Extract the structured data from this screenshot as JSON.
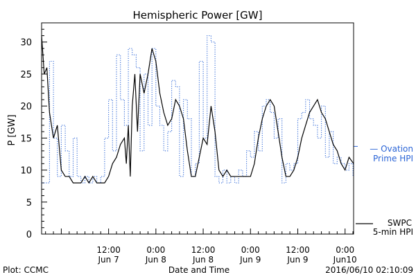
{
  "chart_data": {
    "type": "line",
    "title": "Hemispheric Power [GW]",
    "ylabel": "P [GW]",
    "xlabel": "Date and Time",
    "ylim": [
      0,
      33
    ],
    "yticks": [
      0,
      5,
      10,
      15,
      20,
      25,
      30
    ],
    "grid": false,
    "x_start": "2016-06-06 19:00",
    "x_end": "2016-06-10 02:10",
    "xticks": [
      {
        "t": "2016-06-07 12:00",
        "time": "12:00",
        "date": "Jun 7"
      },
      {
        "t": "2016-06-08 00:00",
        "time": "0:00",
        "date": "Jun 8"
      },
      {
        "t": "2016-06-08 12:00",
        "time": "12:00",
        "date": "Jun 8"
      },
      {
        "t": "2016-06-09 00:00",
        "time": "0:00",
        "date": "Jun 9"
      },
      {
        "t": "2016-06-09 12:00",
        "time": "12:00",
        "date": "Jun 9"
      },
      {
        "t": "2016-06-10 00:00",
        "time": "0:00",
        "date": "Jun10"
      }
    ],
    "series": [
      {
        "name": "Ovation Prime HPI",
        "label_lines": [
          "— Ovation",
          "Prime HPI"
        ],
        "color": "#2a64d6",
        "style": "dotted-step",
        "points": [
          [
            "2016-06-06 19:00",
            8
          ],
          [
            "2016-06-06 20:00",
            8
          ],
          [
            "2016-06-06 21:00",
            27
          ],
          [
            "2016-06-06 22:00",
            15
          ],
          [
            "2016-06-06 23:00",
            9
          ],
          [
            "2016-06-07 00:00",
            17
          ],
          [
            "2016-06-07 01:00",
            13
          ],
          [
            "2016-06-07 02:00",
            9
          ],
          [
            "2016-06-07 03:00",
            15
          ],
          [
            "2016-06-07 04:00",
            9
          ],
          [
            "2016-06-07 05:00",
            8
          ],
          [
            "2016-06-07 06:00",
            9
          ],
          [
            "2016-06-07 07:00",
            8
          ],
          [
            "2016-06-07 08:00",
            9
          ],
          [
            "2016-06-07 09:00",
            8
          ],
          [
            "2016-06-07 10:00",
            9
          ],
          [
            "2016-06-07 11:00",
            15
          ],
          [
            "2016-06-07 12:00",
            21
          ],
          [
            "2016-06-07 13:00",
            13
          ],
          [
            "2016-06-07 14:00",
            28
          ],
          [
            "2016-06-07 15:00",
            21
          ],
          [
            "2016-06-07 16:00",
            17
          ],
          [
            "2016-06-07 17:00",
            29
          ],
          [
            "2016-06-07 18:00",
            28
          ],
          [
            "2016-06-07 19:00",
            26
          ],
          [
            "2016-06-07 20:00",
            13
          ],
          [
            "2016-06-07 21:00",
            25
          ],
          [
            "2016-06-07 22:00",
            17
          ],
          [
            "2016-06-07 23:00",
            29
          ],
          [
            "2016-06-08 00:00",
            20
          ],
          [
            "2016-06-08 01:00",
            17
          ],
          [
            "2016-06-08 02:00",
            13
          ],
          [
            "2016-06-08 03:00",
            16
          ],
          [
            "2016-06-08 04:00",
            24
          ],
          [
            "2016-06-08 05:00",
            23
          ],
          [
            "2016-06-08 06:00",
            9
          ],
          [
            "2016-06-08 07:00",
            21
          ],
          [
            "2016-06-08 08:00",
            18
          ],
          [
            "2016-06-08 09:00",
            9
          ],
          [
            "2016-06-08 10:00",
            11
          ],
          [
            "2016-06-08 11:00",
            27
          ],
          [
            "2016-06-08 12:00",
            15
          ],
          [
            "2016-06-08 13:00",
            31
          ],
          [
            "2016-06-08 14:00",
            30
          ],
          [
            "2016-06-08 15:00",
            9
          ],
          [
            "2016-06-08 16:00",
            8
          ],
          [
            "2016-06-08 17:00",
            10
          ],
          [
            "2016-06-08 18:00",
            8
          ],
          [
            "2016-06-08 19:00",
            9
          ],
          [
            "2016-06-08 20:00",
            8
          ],
          [
            "2016-06-08 21:00",
            10
          ],
          [
            "2016-06-08 22:00",
            9
          ],
          [
            "2016-06-08 23:00",
            13
          ],
          [
            "2016-06-09 00:00",
            12
          ],
          [
            "2016-06-09 01:00",
            16
          ],
          [
            "2016-06-09 02:00",
            13
          ],
          [
            "2016-06-09 03:00",
            20
          ],
          [
            "2016-06-09 04:00",
            21
          ],
          [
            "2016-06-09 05:00",
            19
          ],
          [
            "2016-06-09 06:00",
            15
          ],
          [
            "2016-06-09 07:00",
            18
          ],
          [
            "2016-06-09 08:00",
            8
          ],
          [
            "2016-06-09 09:00",
            11
          ],
          [
            "2016-06-09 10:00",
            10
          ],
          [
            "2016-06-09 11:00",
            11
          ],
          [
            "2016-06-09 12:00",
            18
          ],
          [
            "2016-06-09 13:00",
            19
          ],
          [
            "2016-06-09 14:00",
            21
          ],
          [
            "2016-06-09 15:00",
            18
          ],
          [
            "2016-06-09 16:00",
            17
          ],
          [
            "2016-06-09 17:00",
            15
          ],
          [
            "2016-06-09 18:00",
            20
          ],
          [
            "2016-06-09 19:00",
            12
          ],
          [
            "2016-06-09 20:00",
            16
          ],
          [
            "2016-06-09 21:00",
            11
          ],
          [
            "2016-06-09 22:00",
            12
          ],
          [
            "2016-06-09 23:00",
            11
          ],
          [
            "2016-06-10 00:00",
            10
          ],
          [
            "2016-06-10 01:00",
            11
          ],
          [
            "2016-06-10 02:00",
            9
          ],
          [
            "2016-06-10 02:10",
            9
          ]
        ]
      },
      {
        "name": "SWPC 5-min HPI",
        "label_lines": [
          "SWPC",
          "5-min HPI"
        ],
        "color": "#000000",
        "style": "solid",
        "points": [
          [
            "2016-06-06 19:00",
            31
          ],
          [
            "2016-06-06 19:40",
            25
          ],
          [
            "2016-06-06 20:20",
            26
          ],
          [
            "2016-06-06 21:00",
            19
          ],
          [
            "2016-06-06 22:00",
            15
          ],
          [
            "2016-06-06 23:00",
            17
          ],
          [
            "2016-06-07 00:00",
            10
          ],
          [
            "2016-06-07 01:00",
            9
          ],
          [
            "2016-06-07 02:00",
            9
          ],
          [
            "2016-06-07 03:00",
            8
          ],
          [
            "2016-06-07 05:00",
            8
          ],
          [
            "2016-06-07 06:00",
            9
          ],
          [
            "2016-06-07 07:00",
            8
          ],
          [
            "2016-06-07 08:00",
            9
          ],
          [
            "2016-06-07 09:00",
            8
          ],
          [
            "2016-06-07 11:00",
            8
          ],
          [
            "2016-06-07 12:00",
            9
          ],
          [
            "2016-06-07 13:00",
            11
          ],
          [
            "2016-06-07 14:00",
            12
          ],
          [
            "2016-06-07 15:00",
            14
          ],
          [
            "2016-06-07 16:00",
            15
          ],
          [
            "2016-06-07 16:30",
            11
          ],
          [
            "2016-06-07 17:00",
            17
          ],
          [
            "2016-06-07 17:30",
            9
          ],
          [
            "2016-06-07 18:00",
            20
          ],
          [
            "2016-06-07 18:40",
            25
          ],
          [
            "2016-06-07 19:20",
            16
          ],
          [
            "2016-06-07 20:00",
            25
          ],
          [
            "2016-06-07 21:00",
            22
          ],
          [
            "2016-06-07 22:00",
            25
          ],
          [
            "2016-06-07 23:00",
            29
          ],
          [
            "2016-06-08 00:00",
            27
          ],
          [
            "2016-06-08 01:00",
            22
          ],
          [
            "2016-06-08 02:00",
            19
          ],
          [
            "2016-06-08 03:00",
            17
          ],
          [
            "2016-06-08 04:00",
            18
          ],
          [
            "2016-06-08 05:00",
            21
          ],
          [
            "2016-06-08 06:00",
            20
          ],
          [
            "2016-06-08 07:00",
            18
          ],
          [
            "2016-06-08 08:00",
            13
          ],
          [
            "2016-06-08 09:00",
            9
          ],
          [
            "2016-06-08 10:00",
            9
          ],
          [
            "2016-06-08 11:00",
            12
          ],
          [
            "2016-06-08 12:00",
            15
          ],
          [
            "2016-06-08 13:00",
            14
          ],
          [
            "2016-06-08 14:00",
            20
          ],
          [
            "2016-06-08 15:00",
            16
          ],
          [
            "2016-06-08 16:00",
            10
          ],
          [
            "2016-06-08 17:00",
            9
          ],
          [
            "2016-06-08 18:00",
            10
          ],
          [
            "2016-06-08 19:00",
            9
          ],
          [
            "2016-06-08 20:00",
            9
          ],
          [
            "2016-06-08 22:00",
            9
          ],
          [
            "2016-06-09 00:00",
            9
          ],
          [
            "2016-06-09 01:00",
            11
          ],
          [
            "2016-06-09 02:00",
            15
          ],
          [
            "2016-06-09 03:00",
            18
          ],
          [
            "2016-06-09 04:00",
            20
          ],
          [
            "2016-06-09 05:00",
            21
          ],
          [
            "2016-06-09 06:00",
            20
          ],
          [
            "2016-06-09 07:00",
            16
          ],
          [
            "2016-06-09 08:00",
            12
          ],
          [
            "2016-06-09 09:00",
            9
          ],
          [
            "2016-06-09 10:00",
            9
          ],
          [
            "2016-06-09 11:00",
            10
          ],
          [
            "2016-06-09 12:00",
            12
          ],
          [
            "2016-06-09 13:00",
            15
          ],
          [
            "2016-06-09 14:00",
            17
          ],
          [
            "2016-06-09 15:00",
            19
          ],
          [
            "2016-06-09 16:00",
            20
          ],
          [
            "2016-06-09 17:00",
            21
          ],
          [
            "2016-06-09 18:00",
            19
          ],
          [
            "2016-06-09 19:00",
            18
          ],
          [
            "2016-06-09 20:00",
            16
          ],
          [
            "2016-06-09 21:00",
            14
          ],
          [
            "2016-06-09 22:00",
            13
          ],
          [
            "2016-06-09 23:00",
            11
          ],
          [
            "2016-06-10 00:00",
            10
          ],
          [
            "2016-06-10 01:00",
            12
          ],
          [
            "2016-06-10 02:10",
            11
          ]
        ]
      }
    ],
    "footer": {
      "left": "Plot: CCMC",
      "right": "2016/06/10 02:10:09"
    }
  }
}
